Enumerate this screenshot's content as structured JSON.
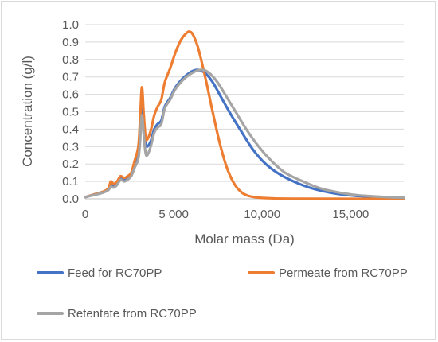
{
  "chart_data": {
    "type": "line",
    "title": "",
    "xlabel": "Molar mass (Da)",
    "ylabel": "Concentration (g/l)",
    "xlim": [
      0,
      18000
    ],
    "ylim": [
      0,
      1.0
    ],
    "grid": true,
    "legend_position": "bottom",
    "x_ticks": [
      {
        "value": 0,
        "label": "0"
      },
      {
        "value": 5000,
        "label": "5 000"
      },
      {
        "value": 10000,
        "label": "10,000"
      },
      {
        "value": 15000,
        "label": "15,000"
      }
    ],
    "y_ticks": [
      {
        "value": 0.0,
        "label": "0.0"
      },
      {
        "value": 0.1,
        "label": "0.1"
      },
      {
        "value": 0.2,
        "label": "0.2"
      },
      {
        "value": 0.3,
        "label": "0.3"
      },
      {
        "value": 0.4,
        "label": "0.4"
      },
      {
        "value": 0.5,
        "label": "0.5"
      },
      {
        "value": 0.6,
        "label": "0.6"
      },
      {
        "value": 0.7,
        "label": "0.7"
      },
      {
        "value": 0.8,
        "label": "0.8"
      },
      {
        "value": 0.9,
        "label": "0.9"
      },
      {
        "value": 1.0,
        "label": "1.0"
      }
    ],
    "series": [
      {
        "name": "Feed for RC70PP",
        "color": "#4472c4",
        "points": [
          [
            0,
            0.01
          ],
          [
            500,
            0.025
          ],
          [
            1000,
            0.04
          ],
          [
            1300,
            0.055
          ],
          [
            1450,
            0.08
          ],
          [
            1600,
            0.075
          ],
          [
            1800,
            0.09
          ],
          [
            2000,
            0.12
          ],
          [
            2200,
            0.11
          ],
          [
            2400,
            0.12
          ],
          [
            2600,
            0.14
          ],
          [
            2800,
            0.2
          ],
          [
            3000,
            0.25
          ],
          [
            3100,
            0.38
          ],
          [
            3200,
            0.55
          ],
          [
            3300,
            0.45
          ],
          [
            3400,
            0.32
          ],
          [
            3500,
            0.3
          ],
          [
            3700,
            0.33
          ],
          [
            3900,
            0.4
          ],
          [
            4100,
            0.43
          ],
          [
            4300,
            0.45
          ],
          [
            4500,
            0.53
          ],
          [
            4800,
            0.58
          ],
          [
            5100,
            0.64
          ],
          [
            5500,
            0.69
          ],
          [
            6000,
            0.73
          ],
          [
            6400,
            0.74
          ],
          [
            6800,
            0.72
          ],
          [
            7200,
            0.67
          ],
          [
            7700,
            0.58
          ],
          [
            8200,
            0.49
          ],
          [
            8800,
            0.39
          ],
          [
            9500,
            0.28
          ],
          [
            10200,
            0.2
          ],
          [
            11000,
            0.14
          ],
          [
            12000,
            0.09
          ],
          [
            13000,
            0.055
          ],
          [
            14000,
            0.033
          ],
          [
            15000,
            0.02
          ],
          [
            16000,
            0.013
          ],
          [
            17000,
            0.008
          ],
          [
            18000,
            0.005
          ]
        ]
      },
      {
        "name": "Permeate from RC70PP",
        "color": "#ed7d31",
        "points": [
          [
            0,
            0.01
          ],
          [
            500,
            0.025
          ],
          [
            1000,
            0.04
          ],
          [
            1300,
            0.06
          ],
          [
            1450,
            0.1
          ],
          [
            1600,
            0.085
          ],
          [
            1800,
            0.1
          ],
          [
            2000,
            0.13
          ],
          [
            2200,
            0.12
          ],
          [
            2400,
            0.13
          ],
          [
            2600,
            0.15
          ],
          [
            2800,
            0.22
          ],
          [
            3000,
            0.3
          ],
          [
            3100,
            0.45
          ],
          [
            3200,
            0.64
          ],
          [
            3300,
            0.5
          ],
          [
            3400,
            0.36
          ],
          [
            3500,
            0.34
          ],
          [
            3700,
            0.39
          ],
          [
            3900,
            0.48
          ],
          [
            4100,
            0.53
          ],
          [
            4300,
            0.57
          ],
          [
            4500,
            0.67
          ],
          [
            4800,
            0.75
          ],
          [
            5100,
            0.84
          ],
          [
            5400,
            0.91
          ],
          [
            5700,
            0.95
          ],
          [
            5900,
            0.96
          ],
          [
            6100,
            0.94
          ],
          [
            6400,
            0.86
          ],
          [
            6800,
            0.69
          ],
          [
            7200,
            0.5
          ],
          [
            7600,
            0.32
          ],
          [
            8000,
            0.18
          ],
          [
            8400,
            0.09
          ],
          [
            8800,
            0.04
          ],
          [
            9200,
            0.018
          ],
          [
            9800,
            0.007
          ],
          [
            10500,
            0.003
          ],
          [
            12000,
            0.001
          ],
          [
            18000,
            0.0
          ]
        ]
      },
      {
        "name": "Retentate from RC70PP",
        "color": "#a5a5a5",
        "points": [
          [
            0,
            0.01
          ],
          [
            500,
            0.022
          ],
          [
            1000,
            0.035
          ],
          [
            1300,
            0.05
          ],
          [
            1450,
            0.07
          ],
          [
            1600,
            0.065
          ],
          [
            1800,
            0.08
          ],
          [
            2000,
            0.11
          ],
          [
            2200,
            0.1
          ],
          [
            2400,
            0.11
          ],
          [
            2600,
            0.13
          ],
          [
            2800,
            0.18
          ],
          [
            3000,
            0.23
          ],
          [
            3100,
            0.33
          ],
          [
            3200,
            0.48
          ],
          [
            3300,
            0.38
          ],
          [
            3400,
            0.27
          ],
          [
            3500,
            0.25
          ],
          [
            3700,
            0.3
          ],
          [
            3900,
            0.38
          ],
          [
            4100,
            0.41
          ],
          [
            4300,
            0.43
          ],
          [
            4500,
            0.52
          ],
          [
            4800,
            0.57
          ],
          [
            5100,
            0.63
          ],
          [
            5500,
            0.68
          ],
          [
            6000,
            0.72
          ],
          [
            6500,
            0.74
          ],
          [
            6900,
            0.73
          ],
          [
            7400,
            0.68
          ],
          [
            7900,
            0.6
          ],
          [
            8500,
            0.5
          ],
          [
            9100,
            0.4
          ],
          [
            9800,
            0.3
          ],
          [
            10500,
            0.22
          ],
          [
            11300,
            0.15
          ],
          [
            12300,
            0.1
          ],
          [
            13300,
            0.06
          ],
          [
            14300,
            0.037
          ],
          [
            15300,
            0.022
          ],
          [
            16300,
            0.014
          ],
          [
            17200,
            0.009
          ],
          [
            18000,
            0.006
          ]
        ]
      }
    ]
  }
}
